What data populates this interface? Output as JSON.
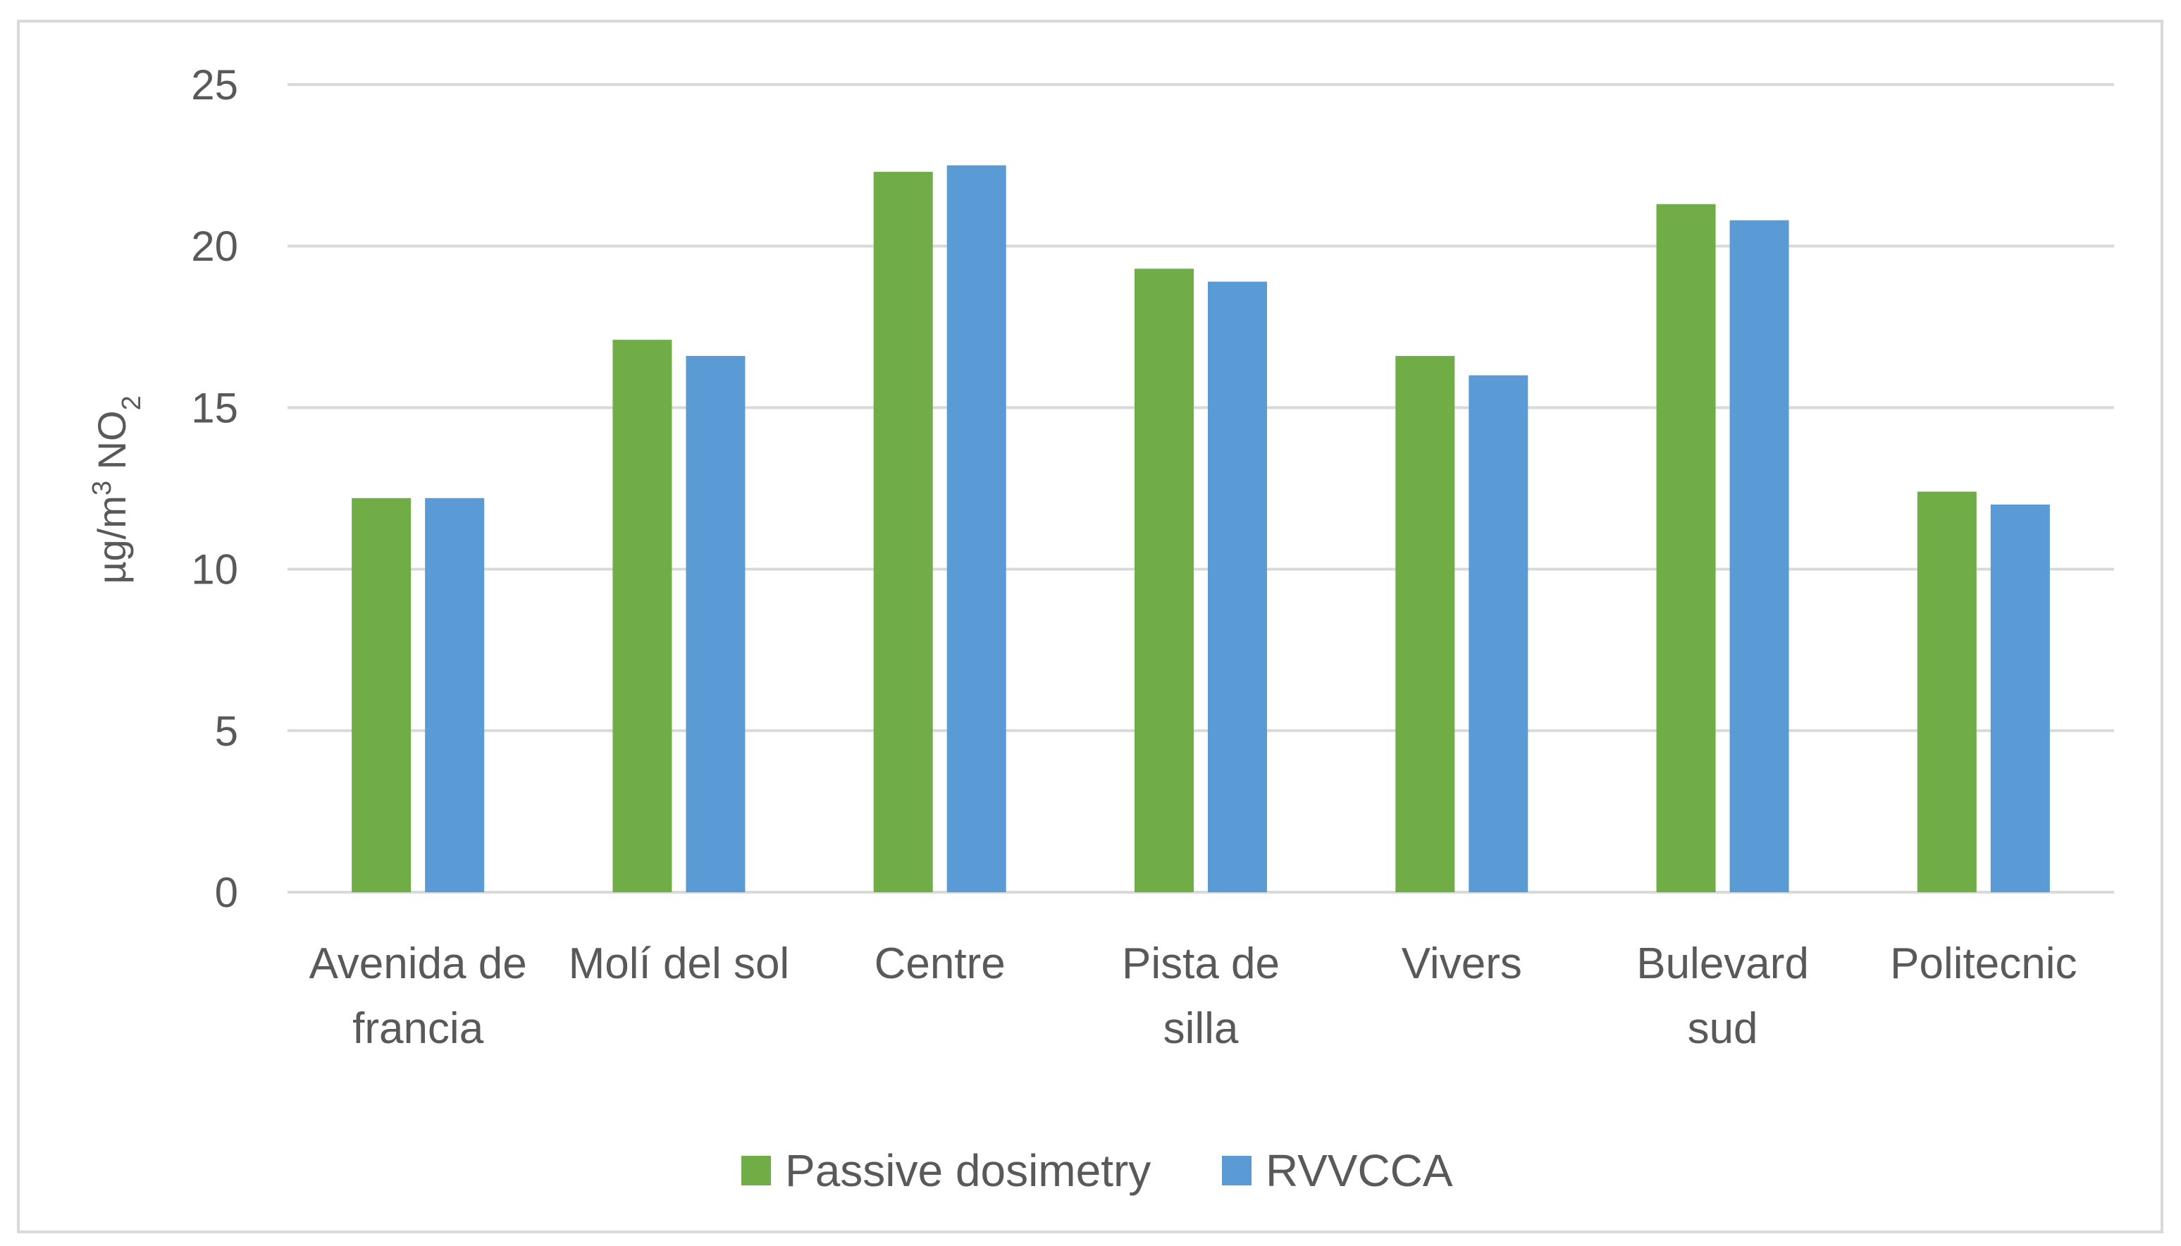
{
  "chart_data": {
    "type": "bar",
    "title": "",
    "xlabel": "",
    "ylabel": {
      "base": "µg/m",
      "sup": "3",
      "mid": " NO",
      "sub": "2"
    },
    "ylim": [
      0,
      25
    ],
    "yticks": [
      0,
      5,
      10,
      15,
      20,
      25
    ],
    "grid": true,
    "legend_position": "bottom",
    "categories": [
      [
        "Avenida de",
        "francia"
      ],
      [
        "Molí del sol"
      ],
      [
        "Centre"
      ],
      [
        "Pista de",
        "silla"
      ],
      [
        "Vivers"
      ],
      [
        "Bulevard",
        "sud"
      ],
      [
        "Politecnic"
      ]
    ],
    "series": [
      {
        "name": "Passive dosimetry",
        "color": "#70ad47",
        "values": [
          12.2,
          17.1,
          22.3,
          19.3,
          16.6,
          21.3,
          12.4
        ]
      },
      {
        "name": "RVVCCA",
        "color": "#5b9bd5",
        "values": [
          12.2,
          16.6,
          22.5,
          18.9,
          16.0,
          20.8,
          12.0
        ]
      }
    ]
  }
}
